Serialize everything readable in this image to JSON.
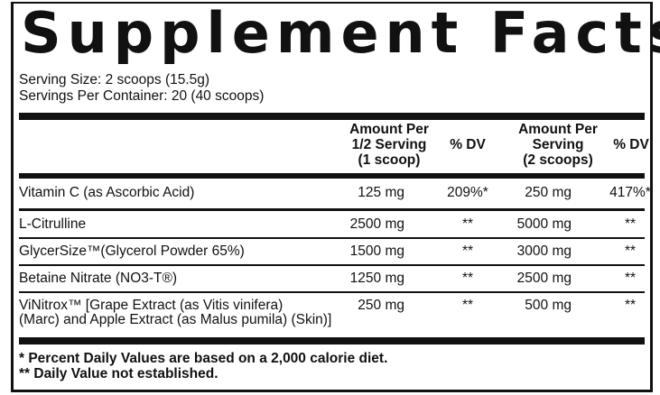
{
  "header": {
    "title": "Supplement Facts",
    "serving_size": "Serving Size: 2 scoops (15.5g)",
    "servings_per_container": "Servings Per Container: 20 (40 scoops)"
  },
  "table": {
    "columns": [
      "Amount Per\n1/2 Serving\n(1 scoop)",
      "% DV",
      "Amount Per\nServing\n(2 scoops)",
      "% DV"
    ],
    "rows": [
      {
        "name": [
          "Vitamin C (as Ascorbic Acid)"
        ],
        "amount_half": "125 mg",
        "dv_half": "209%*",
        "amount_full": "250 mg",
        "dv_full": "417%*"
      },
      {
        "name": [
          "L-Citrulline"
        ],
        "amount_half": "2500 mg",
        "dv_half": "**",
        "amount_full": "5000 mg",
        "dv_full": "**"
      },
      {
        "name": [
          "GlycerSize™(Glycerol Powder 65%)"
        ],
        "amount_half": "1500 mg",
        "dv_half": "**",
        "amount_full": "3000 mg",
        "dv_full": "**"
      },
      {
        "name": [
          "Betaine Nitrate (NO3-T®)"
        ],
        "amount_half": "1250 mg",
        "dv_half": "**",
        "amount_full": "2500 mg",
        "dv_full": "**"
      },
      {
        "name": [
          "ViNitrox™ [Grape Extract (as Vitis vinifera)",
          "(Marc) and Apple Extract (as Malus pumila) (Skin)]"
        ],
        "amount_half": "250 mg",
        "dv_half": "**",
        "amount_full": "500 mg",
        "dv_full": "**"
      }
    ]
  },
  "footnotes": [
    "* Percent Daily Values are based on a 2,000 calorie diet.",
    "** Daily Value not established."
  ]
}
